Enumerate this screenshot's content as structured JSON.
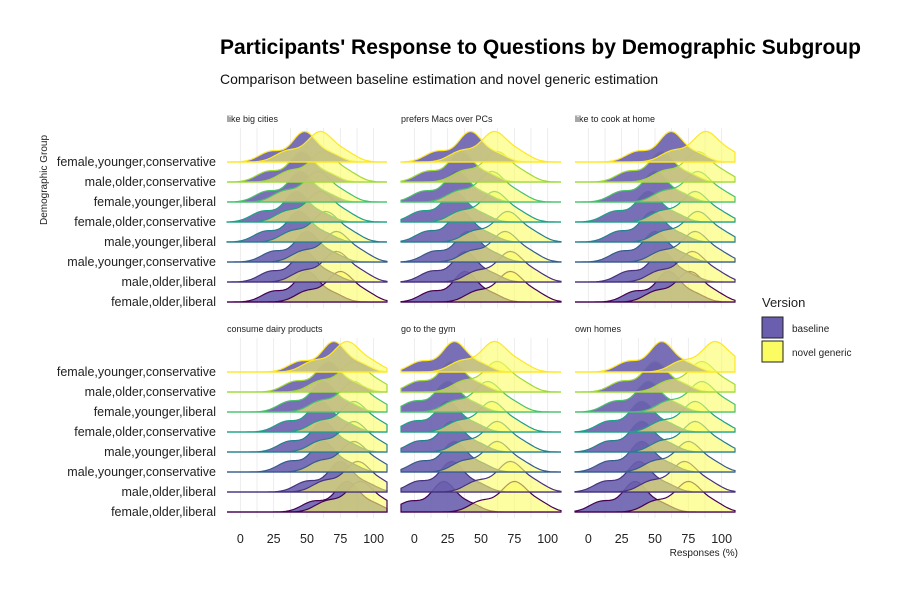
{
  "chart_data": {
    "type": "ridgeline",
    "title": "Participants' Response to Questions by Demographic Subgroup",
    "subtitle": "Comparison between baseline estimation and novel generic estimation",
    "ylabel": "Demographic Group",
    "xlabel": "Responses (%)",
    "x_ticks": [
      0,
      25,
      50,
      75,
      100
    ],
    "xlim": [
      -10,
      110
    ],
    "grid": true,
    "legend": {
      "title": "Version",
      "position": "right",
      "entries": [
        {
          "name": "baseline",
          "color": "#6a5fae"
        },
        {
          "name": "novel generic",
          "color": "#fbfb62"
        }
      ]
    },
    "groups": [
      "female,younger,conservative",
      "male,older,conservative",
      "female,younger,liberal",
      "female,older,conservative",
      "male,younger,liberal",
      "male,younger,conservative",
      "male,older,liberal",
      "female,older,liberal"
    ],
    "group_colors": [
      "#fde725",
      "#a0da39",
      "#4ac16d",
      "#1fa187",
      "#277f8e",
      "#365c8d",
      "#46327e",
      "#440154"
    ],
    "panels": [
      {
        "label": "like big cities",
        "baseline_modes": [
          48,
          46,
          45,
          42,
          44,
          50,
          48,
          50
        ],
        "novel_modes": [
          60,
          62,
          58,
          60,
          64,
          72,
          72,
          75
        ]
      },
      {
        "label": "prefers Macs over PCs",
        "baseline_modes": [
          42,
          35,
          32,
          30,
          35,
          40,
          38,
          38
        ],
        "novel_modes": [
          60,
          62,
          58,
          60,
          70,
          68,
          72,
          72
        ]
      },
      {
        "label": "like to cook at home",
        "baseline_modes": [
          62,
          55,
          50,
          45,
          48,
          50,
          55,
          60
        ],
        "novel_modes": [
          88,
          82,
          82,
          80,
          82,
          80,
          78,
          76
        ]
      },
      {
        "label": "consume dairy products",
        "baseline_modes": [
          70,
          66,
          62,
          60,
          62,
          62,
          75,
          80
        ],
        "novel_modes": [
          80,
          85,
          85,
          85,
          85,
          85,
          88,
          90
        ]
      },
      {
        "label": "go to the gym",
        "baseline_modes": [
          30,
          28,
          25,
          25,
          28,
          30,
          28,
          22
        ],
        "novel_modes": [
          60,
          62,
          55,
          58,
          62,
          62,
          72,
          75
        ]
      },
      {
        "label": "own homes",
        "baseline_modes": [
          55,
          50,
          45,
          40,
          40,
          40,
          38,
          35
        ],
        "novel_modes": [
          95,
          85,
          85,
          80,
          80,
          75,
          72,
          75
        ]
      }
    ]
  }
}
